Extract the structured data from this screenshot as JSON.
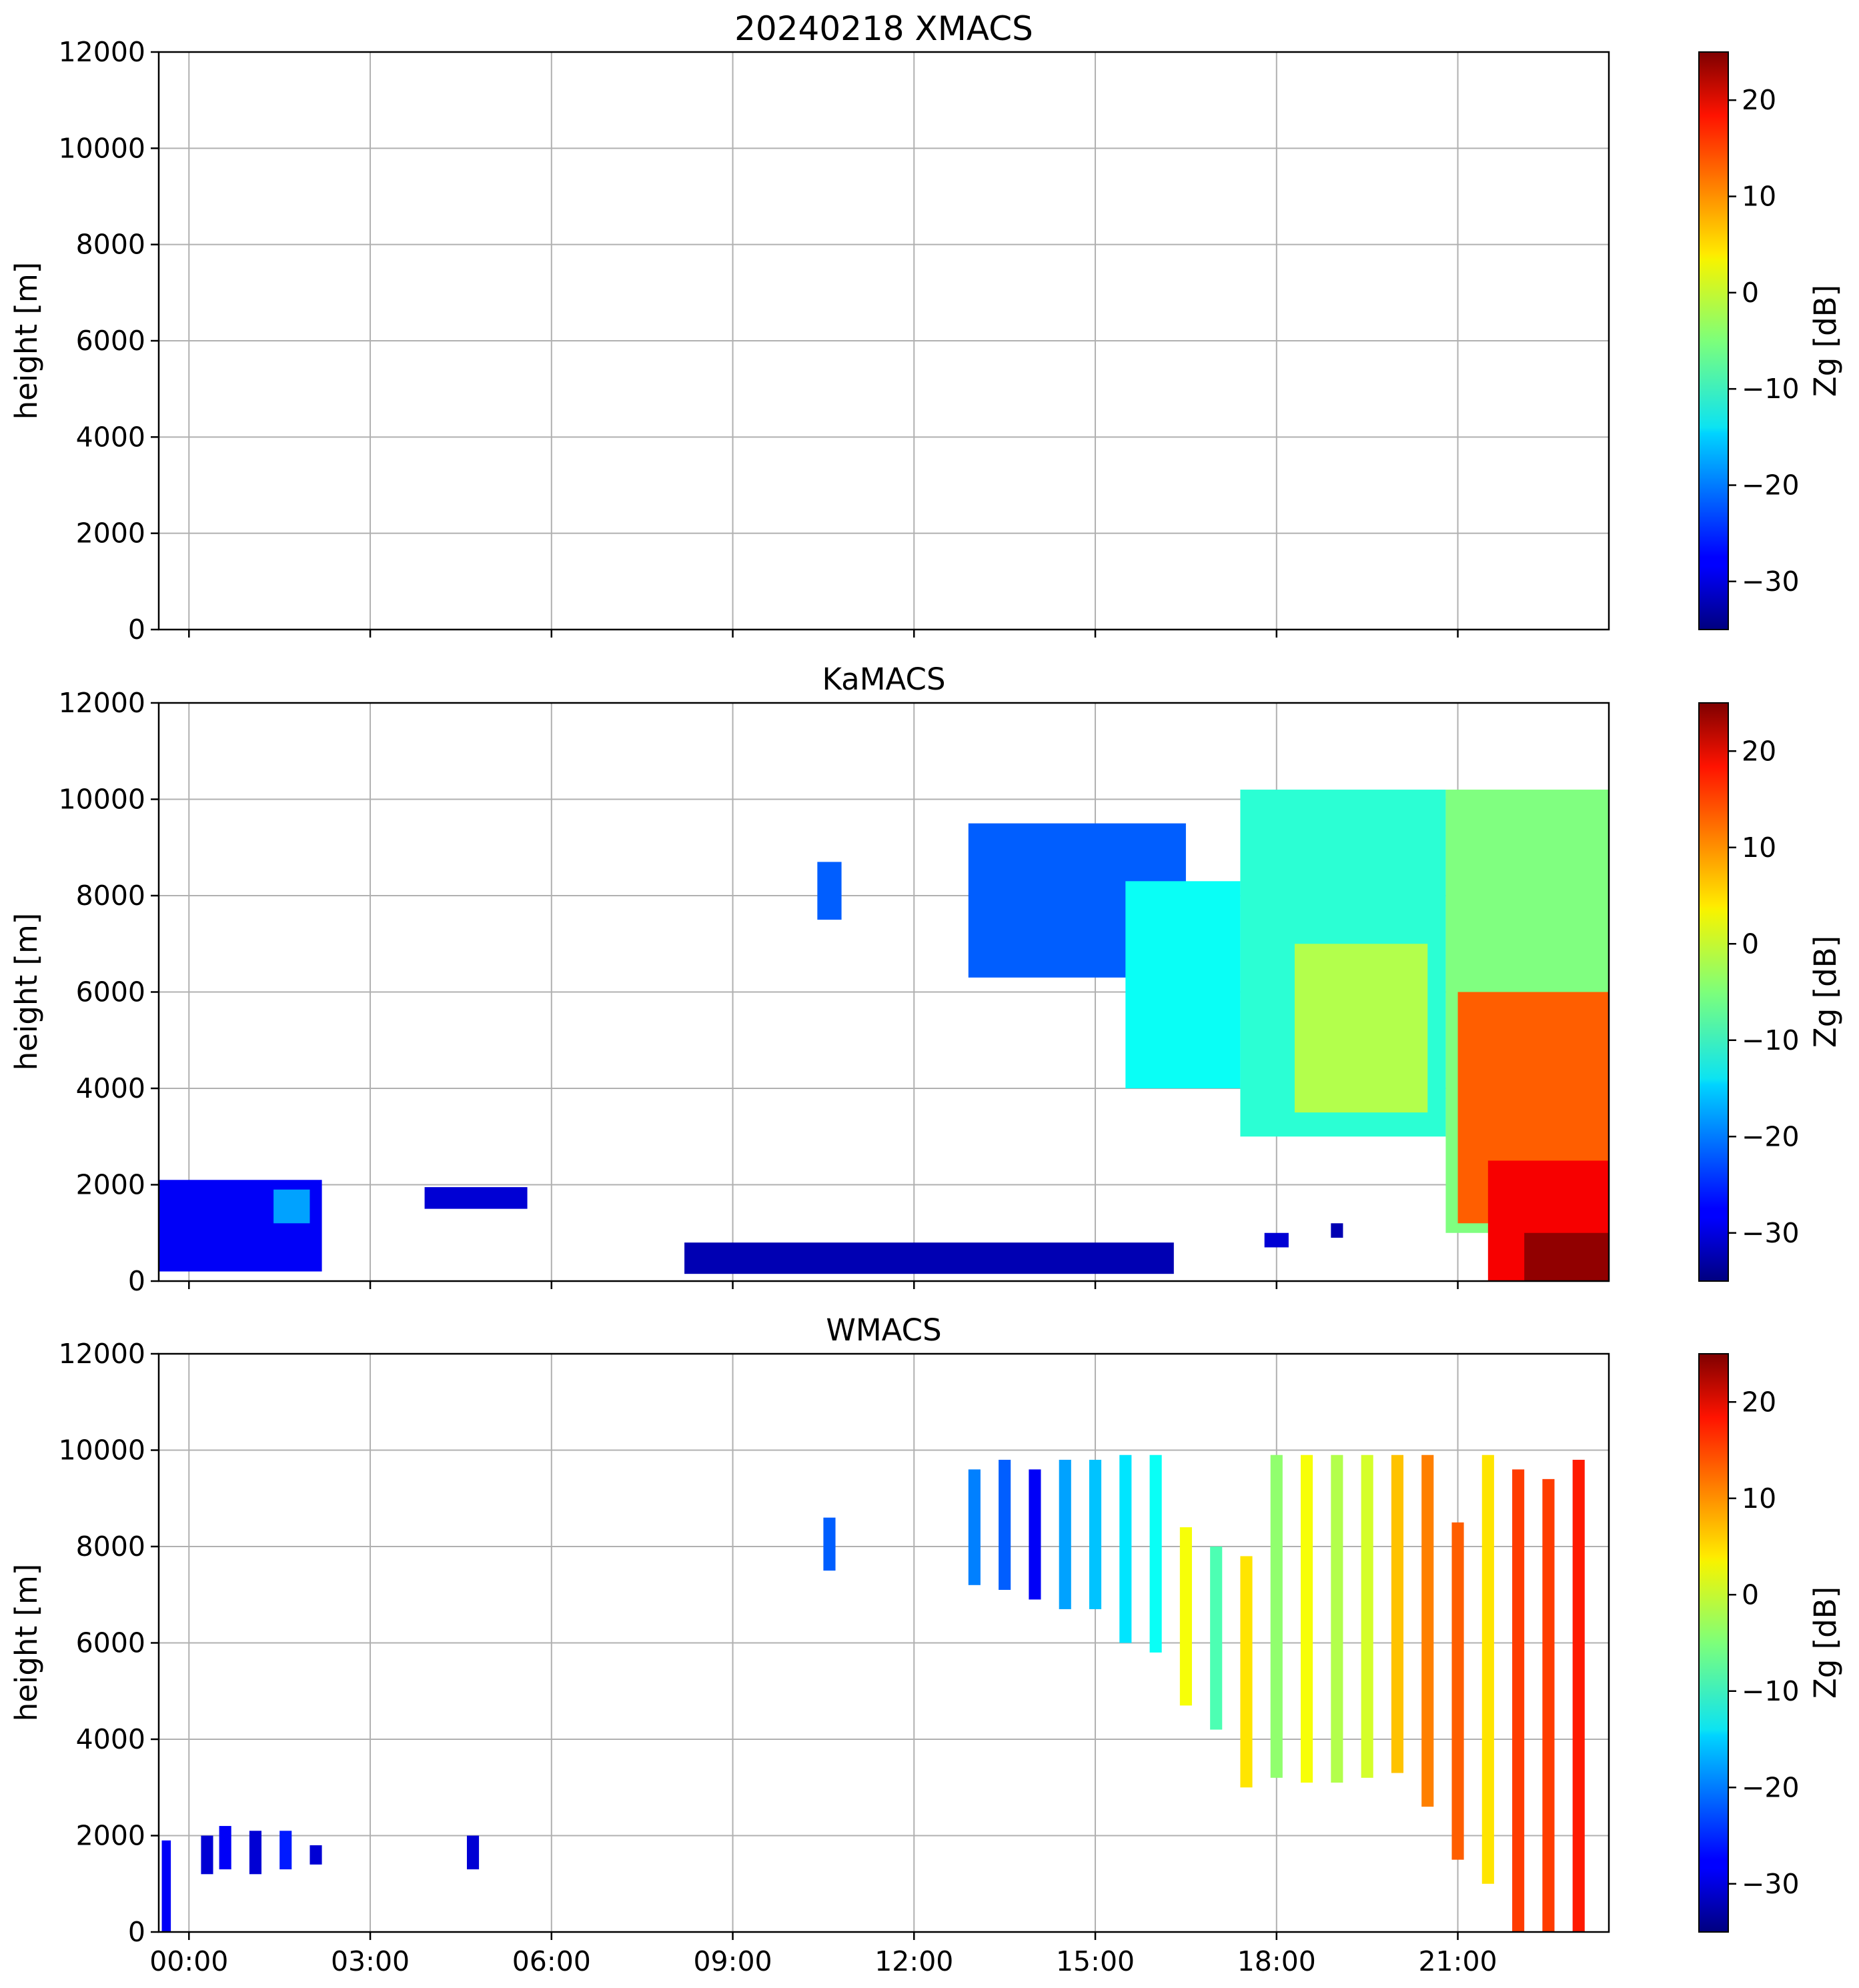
{
  "chart_data": [
    {
      "type": "heatmap",
      "title": "20240218 XMACS",
      "xlabel": "",
      "ylabel": "height [m]",
      "xlim": [
        -0.5,
        23.5
      ],
      "ylim": [
        0,
        12000
      ],
      "yticks": [
        0,
        2000,
        4000,
        6000,
        8000,
        10000,
        12000
      ],
      "xticks": [],
      "colorbar": {
        "label": "Zg [dB]",
        "range": [
          -35,
          25
        ],
        "ticks": [
          -30,
          -20,
          -10,
          0,
          10,
          20
        ]
      },
      "echoes": []
    },
    {
      "type": "heatmap",
      "title": "KaMACS",
      "xlabel": "",
      "ylabel": "height [m]",
      "xlim": [
        -0.5,
        23.5
      ],
      "ylim": [
        0,
        12000
      ],
      "yticks": [
        0,
        2000,
        4000,
        6000,
        8000,
        10000,
        12000
      ],
      "xticks": [],
      "colorbar": {
        "label": "Zg [dB]",
        "range": [
          -35,
          25
        ],
        "ticks": [
          -30,
          -20,
          -10,
          0,
          10,
          20
        ]
      },
      "echoes": [
        {
          "t0": -0.5,
          "t1": 2.2,
          "base": 200,
          "top": 2100,
          "zg": -28
        },
        {
          "t0": 1.4,
          "t1": 2.0,
          "base": 1200,
          "top": 1900,
          "zg": -18
        },
        {
          "t0": 3.9,
          "t1": 5.6,
          "base": 1500,
          "top": 1950,
          "zg": -30
        },
        {
          "t0": 8.2,
          "t1": 16.3,
          "base": 150,
          "top": 800,
          "zg": -32
        },
        {
          "t0": 10.4,
          "t1": 10.8,
          "base": 7500,
          "top": 8700,
          "zg": -22
        },
        {
          "t0": 12.9,
          "t1": 16.5,
          "base": 6300,
          "top": 9500,
          "zg": -22
        },
        {
          "t0": 15.5,
          "t1": 17.4,
          "base": 4000,
          "top": 8300,
          "zg": -12
        },
        {
          "t0": 17.4,
          "t1": 20.8,
          "base": 3000,
          "top": 10200,
          "zg": -10
        },
        {
          "t0": 18.3,
          "t1": 20.5,
          "base": 3500,
          "top": 7000,
          "zg": -2
        },
        {
          "t0": 20.8,
          "t1": 23.5,
          "base": 1000,
          "top": 10200,
          "zg": -5
        },
        {
          "t0": 21.0,
          "t1": 23.5,
          "base": 1200,
          "top": 6000,
          "zg": 12
        },
        {
          "t0": 21.5,
          "t1": 23.5,
          "base": 0,
          "top": 2500,
          "zg": 18
        },
        {
          "t0": 22.1,
          "t1": 23.5,
          "base": 0,
          "top": 1000,
          "zg": 24
        },
        {
          "t0": 17.8,
          "t1": 18.2,
          "base": 700,
          "top": 1000,
          "zg": -30
        },
        {
          "t0": 18.9,
          "t1": 19.1,
          "base": 900,
          "top": 1200,
          "zg": -32
        }
      ]
    },
    {
      "type": "heatmap",
      "title": "WMACS",
      "xlabel": "",
      "ylabel": "height [m]",
      "xlim": [
        -0.5,
        23.5
      ],
      "ylim": [
        0,
        12000
      ],
      "yticks": [
        0,
        2000,
        4000,
        6000,
        8000,
        10000,
        12000
      ],
      "xticks": [
        "00:00",
        "03:00",
        "06:00",
        "09:00",
        "12:00",
        "15:00",
        "18:00",
        "21:00"
      ],
      "colorbar": {
        "label": "Zg [dB]",
        "range": [
          -35,
          25
        ],
        "ticks": [
          -30,
          -20,
          -10,
          0,
          10,
          20
        ]
      },
      "echoes": [
        {
          "t0": -0.45,
          "t1": -0.3,
          "base": 0,
          "top": 1900,
          "zg": -28
        },
        {
          "t0": 0.2,
          "t1": 0.4,
          "base": 1200,
          "top": 2000,
          "zg": -30
        },
        {
          "t0": 0.5,
          "t1": 0.7,
          "base": 1300,
          "top": 2200,
          "zg": -28
        },
        {
          "t0": 1.0,
          "t1": 1.2,
          "base": 1200,
          "top": 2100,
          "zg": -30
        },
        {
          "t0": 1.5,
          "t1": 1.7,
          "base": 1300,
          "top": 2100,
          "zg": -26
        },
        {
          "t0": 2.0,
          "t1": 2.2,
          "base": 1400,
          "top": 1800,
          "zg": -30
        },
        {
          "t0": 4.6,
          "t1": 4.8,
          "base": 1300,
          "top": 2000,
          "zg": -30
        },
        {
          "t0": 10.5,
          "t1": 10.7,
          "base": 7500,
          "top": 8600,
          "zg": -22
        },
        {
          "t0": 12.9,
          "t1": 13.1,
          "base": 7200,
          "top": 9600,
          "zg": -20
        },
        {
          "t0": 13.4,
          "t1": 13.6,
          "base": 7100,
          "top": 9800,
          "zg": -22
        },
        {
          "t0": 13.9,
          "t1": 14.1,
          "base": 6900,
          "top": 9600,
          "zg": -28
        },
        {
          "t0": 14.4,
          "t1": 14.6,
          "base": 6700,
          "top": 9800,
          "zg": -18
        },
        {
          "t0": 14.9,
          "t1": 15.1,
          "base": 6700,
          "top": 9800,
          "zg": -16
        },
        {
          "t0": 15.4,
          "t1": 15.6,
          "base": 6000,
          "top": 9900,
          "zg": -14
        },
        {
          "t0": 15.9,
          "t1": 16.1,
          "base": 5800,
          "top": 9900,
          "zg": -12
        },
        {
          "t0": 16.4,
          "t1": 16.6,
          "base": 4700,
          "top": 8400,
          "zg": 2
        },
        {
          "t0": 16.9,
          "t1": 17.1,
          "base": 4200,
          "top": 8000,
          "zg": -8
        },
        {
          "t0": 17.4,
          "t1": 17.6,
          "base": 3000,
          "top": 7800,
          "zg": 4
        },
        {
          "t0": 17.9,
          "t1": 18.1,
          "base": 3200,
          "top": 9900,
          "zg": -4
        },
        {
          "t0": 18.4,
          "t1": 18.6,
          "base": 3100,
          "top": 9900,
          "zg": 2
        },
        {
          "t0": 18.9,
          "t1": 19.1,
          "base": 3100,
          "top": 9900,
          "zg": -2
        },
        {
          "t0": 19.4,
          "t1": 19.6,
          "base": 3200,
          "top": 9900,
          "zg": 0
        },
        {
          "t0": 19.9,
          "t1": 20.1,
          "base": 3300,
          "top": 9900,
          "zg": 6
        },
        {
          "t0": 20.4,
          "t1": 20.6,
          "base": 2600,
          "top": 9900,
          "zg": 10
        },
        {
          "t0": 20.9,
          "t1": 21.1,
          "base": 1500,
          "top": 8500,
          "zg": 12
        },
        {
          "t0": 21.4,
          "t1": 21.6,
          "base": 1000,
          "top": 9900,
          "zg": 4
        },
        {
          "t0": 21.9,
          "t1": 22.1,
          "base": 0,
          "top": 9600,
          "zg": 14
        },
        {
          "t0": 22.4,
          "t1": 22.6,
          "base": 0,
          "top": 9400,
          "zg": 14
        },
        {
          "t0": 22.9,
          "t1": 23.1,
          "base": 0,
          "top": 9800,
          "zg": 16
        }
      ]
    }
  ]
}
